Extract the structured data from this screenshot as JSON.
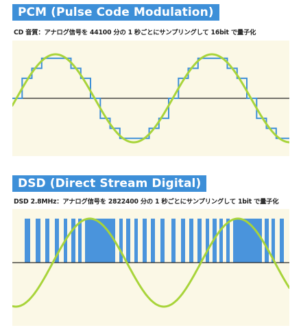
{
  "pcm": {
    "title": "PCM (Pulse Code Modulation)",
    "caption": "CD 音質：アナログ信号を 44100 分の 1 秒ごとにサンプリングして 16bit で量子化"
  },
  "dsd": {
    "title": "DSD (Direct Stream Digital)",
    "caption": "DSD 2.8MHz：アナログ信号を 2822400 分の 1 秒ごとにサンプリングして 1bit で量子化"
  },
  "colors": {
    "title_bg": "#3d8fd8",
    "panel_bg": "#fbf8e6",
    "wave": "#a8d43a",
    "pcm_step": "#3d8fd8",
    "dsd_pulse": "#4a94dc",
    "axis": "#222222"
  }
}
